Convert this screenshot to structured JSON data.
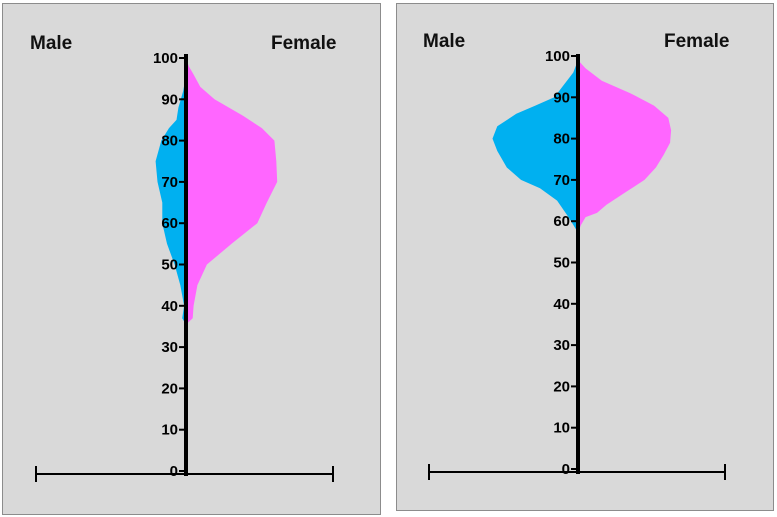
{
  "chart_data": [
    {
      "type": "population-pyramid",
      "series": [
        {
          "name": "Male",
          "color": "#00b0f0"
        },
        {
          "name": "Female",
          "color": "#ff66ff"
        }
      ],
      "y_ticks": [
        "0",
        "10",
        "20",
        "30",
        "40",
        "50",
        "60",
        "70",
        "80",
        "90",
        "100"
      ],
      "ylim": [
        0,
        100
      ],
      "male_profile": [
        [
          35.5,
          0
        ],
        [
          37,
          4
        ],
        [
          40,
          2
        ],
        [
          45,
          6
        ],
        [
          50,
          12
        ],
        [
          55,
          20
        ],
        [
          60,
          25
        ],
        [
          65,
          25
        ],
        [
          70,
          30
        ],
        [
          75,
          32
        ],
        [
          80,
          26
        ],
        [
          83,
          18
        ],
        [
          85,
          10
        ],
        [
          88,
          8
        ],
        [
          92,
          3
        ],
        [
          96,
          0
        ]
      ],
      "female_profile": [
        [
          35.5,
          0
        ],
        [
          37,
          7
        ],
        [
          40,
          8
        ],
        [
          45,
          12
        ],
        [
          50,
          22
        ],
        [
          55,
          48
        ],
        [
          60,
          75
        ],
        [
          65,
          85
        ],
        [
          70,
          96
        ],
        [
          75,
          95
        ],
        [
          80,
          93
        ],
        [
          83,
          80
        ],
        [
          86,
          60
        ],
        [
          90,
          30
        ],
        [
          93,
          15
        ],
        [
          96,
          8
        ],
        [
          98,
          3
        ],
        [
          100,
          0
        ]
      ]
    },
    {
      "type": "population-pyramid",
      "series": [
        {
          "name": "Male",
          "color": "#00b0f0"
        },
        {
          "name": "Female",
          "color": "#ff66ff"
        }
      ],
      "y_ticks": [
        "0",
        "10",
        "20",
        "30",
        "40",
        "50",
        "60",
        "70",
        "80",
        "90",
        "100"
      ],
      "ylim": [
        0,
        100
      ],
      "male_profile": [
        [
          55,
          0
        ],
        [
          58,
          2
        ],
        [
          61,
          10
        ],
        [
          65,
          22
        ],
        [
          68,
          40
        ],
        [
          70,
          60
        ],
        [
          73,
          75
        ],
        [
          77,
          85
        ],
        [
          80,
          90
        ],
        [
          83,
          85
        ],
        [
          86,
          65
        ],
        [
          88,
          45
        ],
        [
          90,
          25
        ],
        [
          93,
          15
        ],
        [
          96,
          5
        ],
        [
          99,
          0
        ]
      ],
      "female_profile": [
        [
          57,
          0
        ],
        [
          59,
          3
        ],
        [
          61,
          8
        ],
        [
          62,
          20
        ],
        [
          64,
          30
        ],
        [
          67,
          50
        ],
        [
          70,
          70
        ],
        [
          73,
          82
        ],
        [
          76,
          90
        ],
        [
          79,
          97
        ],
        [
          82,
          98
        ],
        [
          85,
          95
        ],
        [
          88,
          80
        ],
        [
          91,
          55
        ],
        [
          94,
          25
        ],
        [
          97,
          8
        ],
        [
          99,
          0
        ]
      ]
    }
  ]
}
